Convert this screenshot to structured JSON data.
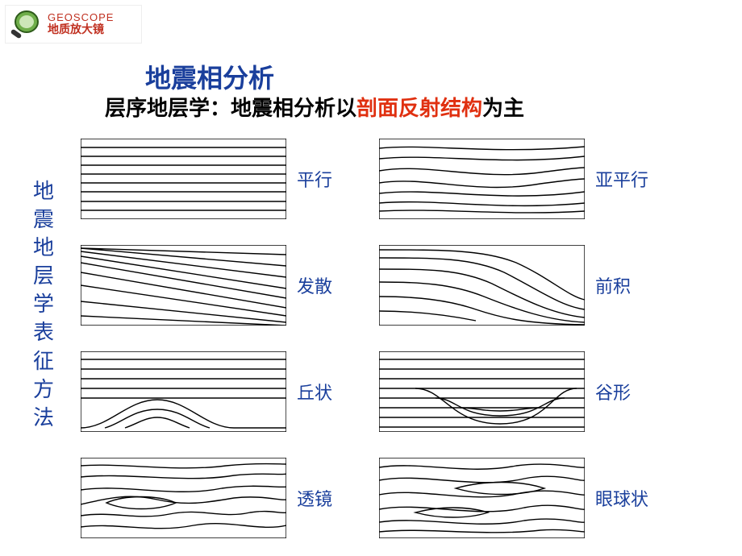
{
  "logo": {
    "en": "GEOSCOPE",
    "cn": "地质放大镜",
    "text_color": "#c03020"
  },
  "title": {
    "text": "地震相分析",
    "color": "#1a3f9c"
  },
  "subtitle": {
    "prefix": "层序地层学：地震相分析以",
    "highlight": "剖面反射结构",
    "suffix": "为主",
    "prefix_color": "#000000",
    "highlight_color": "#e03010",
    "suffix_color": "#000000"
  },
  "vertical_label": {
    "text": "地震地层学表征方法",
    "color": "#1a3f9c"
  },
  "label_color": "#1a3f9c",
  "stroke_color": "#000000",
  "diagrams": [
    {
      "key": "parallel",
      "label": "平行",
      "paths": [
        "M0 0 H255 V100 H0 Z",
        "M0 11 H255",
        "M0 22 H255",
        "M0 33 H255",
        "M0 44 H255",
        "M0 55 H255",
        "M0 66 H255",
        "M0 78 H255",
        "M0 89 H255"
      ]
    },
    {
      "key": "subparallel",
      "label": "亚平行",
      "paths": [
        "M0 0 H255 V100 H0 Z",
        "M0 12 C60 6,140 20,255 10",
        "M0 25 C70 18,150 34,255 22",
        "M0 40 C60 30,120 52,200 42 C230 38,250 36,255 36",
        "M0 55 C60 46,120 70,200 56 C230 52,250 50,255 50",
        "M0 68 C70 60,150 80,255 66",
        "M0 80 C70 74,150 90,255 80",
        "M0 90 C80 86,160 96,255 90"
      ]
    },
    {
      "key": "divergent",
      "label": "发散",
      "paths": [
        "M0 0 H255 V100 H0 Z",
        "M0 4 L255 12",
        "M0 4 L255 26",
        "M0 8 L255 40",
        "M0 14 L255 54",
        "M0 22 L255 66",
        "M0 34 L255 78",
        "M0 50 L255 88",
        "M0 70 L255 96",
        "M0 88 L255 100"
      ]
    },
    {
      "key": "progradation",
      "label": "前积",
      "paths": [
        "M0 0 H255 V100 H0 Z",
        "M0 6 C80 6,130 6,170 22 C210 40,235 64,255 68",
        "M0 16 C70 16,115 16,155 34 C195 54,225 76,255 80",
        "M0 30 C60 30,100 30,140 48 C180 68,215 86,255 90",
        "M0 46 C50 46,90 48,130 64 C170 80,210 94,255 96",
        "M0 64 C45 64,85 68,120 80 C150 90,180 98,255 99",
        "M0 82 C40 82,80 86,120 94"
      ]
    },
    {
      "key": "mound",
      "label": "丘状",
      "paths": [
        "M0 0 H255 V100 H0 Z",
        "M0 10 H255",
        "M0 22 H255",
        "M0 34 H255",
        "M0 46 H255",
        "M0 58 H255",
        "M0 95 C35 95,58 60,95 60 C132 60,155 95,190 95 L255 95",
        "M30 95 C50 90,65 72,95 72 C125 72,140 90,160 95",
        "M55 95 C70 90,80 82,95 82 C110 82,120 90,135 95"
      ]
    },
    {
      "key": "trough",
      "label": "谷形",
      "paths": [
        "M0 0 H255 V100 H0 Z",
        "M0 10 H255",
        "M0 22 H255",
        "M0 34 H255",
        "M0 46 H255",
        "M0 58 H255",
        "M0 70 H255",
        "M0 82 H255",
        "M0 94 H255",
        "M45 46 C80 46,90 90,150 90 C210 90,215 46,245 46",
        "M70 58 C95 58,100 80,150 80 C200 80,205 58,230 58",
        "M100 70 C120 70,125 74,150 74 C175 74,180 70,200 70"
      ]
    },
    {
      "key": "lens",
      "label": "透镜",
      "paths": [
        "M0 0 H255 V100 H0 Z",
        "M0 10 C50 6,120 18,180 10 C220 6,245 8,255 8",
        "M0 24 C60 18,130 32,190 22 C225 18,250 22,255 20",
        "M0 40 C55 32,115 50,175 38 C215 32,250 38,255 36",
        "M0 58 C35 50,60 44,95 52 C130 60,155 56,190 50 C225 46,250 54,255 52",
        "M0 72 C40 66,70 78,110 70 C150 62,175 76,210 68 C235 64,250 70,255 68",
        "M0 86 C45 80,90 94,140 84 C185 76,220 92,255 84",
        "M32 56 C55 46,95 46,118 56 C95 66,55 66,32 56 Z"
      ]
    },
    {
      "key": "eyeball",
      "label": "眼球状",
      "paths": [
        "M0 0 H255 V100 H0 Z",
        "M0 12 C50 4,110 22,170 10 C215 4,250 14,255 12",
        "M0 28 C55 18,120 40,180 26 C220 18,250 30,255 28",
        "M0 46 C50 36,115 58,175 44 C218 36,250 48,255 46",
        "M0 64 C55 54,120 76,180 62 C222 54,250 66,255 64",
        "M0 80 C55 72,120 90,180 78 C222 72,250 82,255 80",
        "M0 92 C60 86,130 98,200 90 C230 88,250 92,255 92",
        "M95 38 C130 28,175 28,205 38 C175 48,130 48,95 38 Z",
        "M45 68 C75 60,110 60,135 68 C110 76,75 76,45 68 Z"
      ]
    }
  ]
}
